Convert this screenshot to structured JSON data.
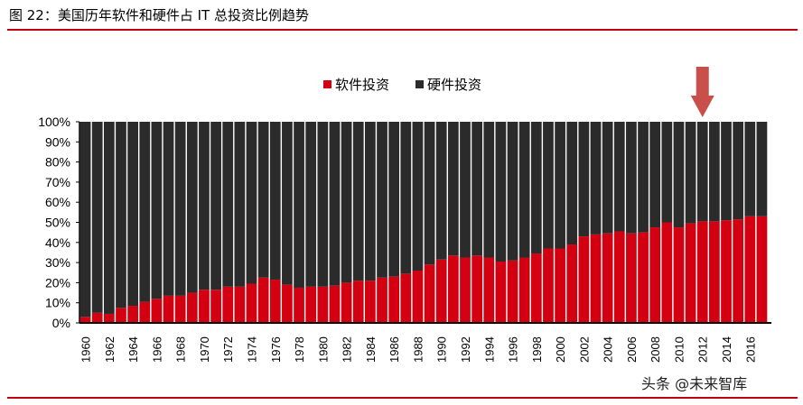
{
  "title": "图 22：美国历年软件和硬件占 IT 总投资比例趋势",
  "watermark": "头条 @未来智库",
  "colors": {
    "software": "#d20010",
    "hardware": "#2b2b2b",
    "accent": "#c0000f",
    "arrow": "#c9504a"
  },
  "chart_data": {
    "type": "bar",
    "stacked": true,
    "title": "",
    "xlabel": "",
    "ylabel": "",
    "ylim": [
      0,
      100
    ],
    "y_ticks": [
      "0%",
      "10%",
      "20%",
      "30%",
      "40%",
      "50%",
      "60%",
      "70%",
      "80%",
      "90%",
      "100%"
    ],
    "legend_position": "top",
    "annotation": "down-arrow-above-2012",
    "categories": [
      1960,
      1961,
      1962,
      1963,
      1964,
      1965,
      1966,
      1967,
      1968,
      1969,
      1970,
      1971,
      1972,
      1973,
      1974,
      1975,
      1976,
      1977,
      1978,
      1979,
      1980,
      1981,
      1982,
      1983,
      1984,
      1985,
      1986,
      1987,
      1988,
      1989,
      1990,
      1991,
      1992,
      1993,
      1994,
      1995,
      1996,
      1997,
      1998,
      1999,
      2000,
      2001,
      2002,
      2003,
      2004,
      2005,
      2006,
      2007,
      2008,
      2009,
      2010,
      2011,
      2012,
      2013,
      2014,
      2015,
      2016,
      2017
    ],
    "x_tick_labels": [
      "1960",
      "1962",
      "1964",
      "1966",
      "1968",
      "1970",
      "1972",
      "1974",
      "1976",
      "1978",
      "1980",
      "1982",
      "1984",
      "1986",
      "1988",
      "1990",
      "1992",
      "1994",
      "1996",
      "1998",
      "2000",
      "2002",
      "2004",
      "2006",
      "2008",
      "2010",
      "2012",
      "2014",
      "2016"
    ],
    "series": [
      {
        "name": "软件投资",
        "values": [
          3,
          5,
          4.5,
          7.5,
          8.5,
          10.5,
          12,
          13.5,
          13.5,
          15,
          16.5,
          16.5,
          18,
          18,
          19.5,
          22.5,
          21.5,
          19,
          17.5,
          18,
          18,
          18.5,
          20,
          21,
          21,
          22.5,
          23,
          24.5,
          26,
          29,
          31.5,
          33.5,
          32.5,
          33.5,
          32.5,
          30.5,
          31,
          32.5,
          34.5,
          37,
          37,
          39,
          43,
          44,
          44.5,
          45.5,
          44.5,
          45,
          47.5,
          50,
          47.5,
          49.5,
          50.5,
          50.5,
          51,
          51.5,
          53,
          53
        ]
      },
      {
        "name": "硬件投资",
        "values": [
          97,
          95,
          95.5,
          92.5,
          91.5,
          89.5,
          88,
          86.5,
          86.5,
          85,
          83.5,
          83.5,
          82,
          82,
          80.5,
          77.5,
          78.5,
          81,
          82.5,
          82,
          82,
          81.5,
          80,
          79,
          79,
          77.5,
          77,
          75.5,
          74,
          71,
          68.5,
          66.5,
          67.5,
          66.5,
          67.5,
          69.5,
          69,
          67.5,
          65.5,
          63,
          63,
          61,
          57,
          56,
          55.5,
          54.5,
          55.5,
          55,
          52.5,
          50,
          52.5,
          50.5,
          49.5,
          49.5,
          49,
          48.5,
          47,
          47
        ]
      }
    ]
  }
}
